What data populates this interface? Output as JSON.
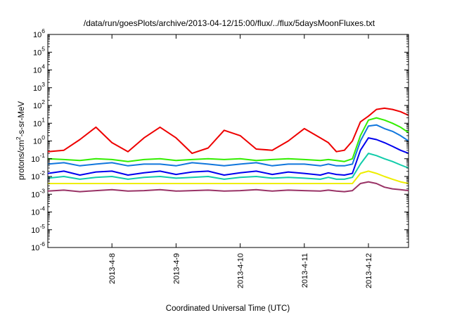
{
  "chart_data": {
    "type": "line",
    "title": "/data/run/goesPlots/archive/2013-04-12/15:00/flux/../flux/5daysMoonFluxes.txt",
    "xlabel": "Coordinated Universal Time (UTC)",
    "ylabel": "protons/cm²-s-sr-MeV",
    "ylabel_parts": [
      "protons/cm",
      "2",
      "-s-sr-MeV"
    ],
    "y_scale": "log",
    "ylim": [
      1e-06,
      1000000.0
    ],
    "y_ticks": [
      {
        "base": "10",
        "exp": "-6"
      },
      {
        "base": "10",
        "exp": "-5"
      },
      {
        "base": "10",
        "exp": "-4"
      },
      {
        "base": "10",
        "exp": "-3"
      },
      {
        "base": "10",
        "exp": "-2"
      },
      {
        "base": "10",
        "exp": "-1"
      },
      {
        "base": "10",
        "exp": "0"
      },
      {
        "base": "10",
        "exp": "1"
      },
      {
        "base": "10",
        "exp": "2"
      },
      {
        "base": "10",
        "exp": "3"
      },
      {
        "base": "10",
        "exp": "4"
      },
      {
        "base": "10",
        "exp": "5"
      },
      {
        "base": "10",
        "exp": "6"
      }
    ],
    "xlim": [
      "2013-04-07T00:00",
      "2013-04-12T15:00"
    ],
    "x_ticks": [
      "2013-4-8",
      "2013-4-9",
      "2013-4-10",
      "2013-4-11",
      "2013-4-12"
    ],
    "grid": false,
    "legend": "none",
    "series_x": [
      "2013-04-07T00:00",
      "2013-04-07T06:00",
      "2013-04-07T12:00",
      "2013-04-07T18:00",
      "2013-04-08T00:00",
      "2013-04-08T06:00",
      "2013-04-08T12:00",
      "2013-04-08T18:00",
      "2013-04-09T00:00",
      "2013-04-09T06:00",
      "2013-04-09T12:00",
      "2013-04-09T18:00",
      "2013-04-10T00:00",
      "2013-04-10T06:00",
      "2013-04-10T12:00",
      "2013-04-10T18:00",
      "2013-04-11T00:00",
      "2013-04-11T06:00",
      "2013-04-11T09:00",
      "2013-04-11T12:00",
      "2013-04-11T15:00",
      "2013-04-11T18:00",
      "2013-04-11T21:00",
      "2013-04-12T00:00",
      "2013-04-12T03:00",
      "2013-04-12T06:00",
      "2013-04-12T09:00",
      "2013-04-12T12:00",
      "2013-04-12T15:00"
    ],
    "series": [
      {
        "color": "#ee0000",
        "values": [
          0.25,
          0.3,
          1.2,
          6.0,
          0.8,
          0.25,
          1.5,
          6.0,
          1.5,
          0.2,
          0.4,
          4.0,
          2.0,
          0.35,
          0.3,
          1.0,
          5.0,
          1.5,
          0.8,
          0.25,
          0.3,
          1.0,
          12.0,
          25.0,
          60.0,
          70.0,
          60.0,
          45.0,
          28.0
        ]
      },
      {
        "color": "#33ee00",
        "values": [
          0.1,
          0.09,
          0.08,
          0.1,
          0.09,
          0.07,
          0.09,
          0.1,
          0.08,
          0.09,
          0.1,
          0.09,
          0.1,
          0.08,
          0.09,
          0.1,
          0.09,
          0.08,
          0.09,
          0.08,
          0.07,
          0.1,
          2.0,
          15.0,
          20.0,
          15.0,
          10.0,
          6.0,
          3.0
        ]
      },
      {
        "color": "#1177dd",
        "values": [
          0.05,
          0.06,
          0.04,
          0.05,
          0.06,
          0.04,
          0.05,
          0.05,
          0.04,
          0.06,
          0.05,
          0.04,
          0.05,
          0.06,
          0.04,
          0.05,
          0.05,
          0.04,
          0.05,
          0.04,
          0.04,
          0.05,
          1.0,
          7.0,
          8.0,
          5.0,
          3.5,
          2.0,
          1.0
        ]
      },
      {
        "color": "#0000ee",
        "values": [
          0.015,
          0.02,
          0.012,
          0.018,
          0.02,
          0.012,
          0.016,
          0.02,
          0.013,
          0.018,
          0.02,
          0.012,
          0.016,
          0.02,
          0.013,
          0.018,
          0.015,
          0.012,
          0.016,
          0.013,
          0.012,
          0.015,
          0.3,
          1.5,
          1.2,
          0.8,
          0.5,
          0.3,
          0.2
        ]
      },
      {
        "color": "#11ccaa",
        "values": [
          0.008,
          0.01,
          0.007,
          0.009,
          0.01,
          0.007,
          0.009,
          0.01,
          0.008,
          0.009,
          0.01,
          0.007,
          0.009,
          0.01,
          0.008,
          0.009,
          0.008,
          0.007,
          0.009,
          0.007,
          0.007,
          0.009,
          0.05,
          0.2,
          0.15,
          0.1,
          0.07,
          0.045,
          0.03
        ]
      },
      {
        "color": "#eeee00",
        "values": [
          0.004,
          0.004,
          0.004,
          0.004,
          0.004,
          0.004,
          0.004,
          0.004,
          0.004,
          0.004,
          0.004,
          0.004,
          0.004,
          0.004,
          0.004,
          0.004,
          0.004,
          0.004,
          0.004,
          0.004,
          0.004,
          0.004,
          0.015,
          0.02,
          0.015,
          0.01,
          0.007,
          0.005,
          0.004
        ]
      },
      {
        "color": "#993366",
        "values": [
          0.0015,
          0.0017,
          0.0014,
          0.0016,
          0.0018,
          0.0015,
          0.0016,
          0.0018,
          0.0015,
          0.0016,
          0.0017,
          0.0015,
          0.0016,
          0.0018,
          0.0015,
          0.0017,
          0.0016,
          0.0015,
          0.0017,
          0.0015,
          0.0014,
          0.0016,
          0.004,
          0.005,
          0.004,
          0.0025,
          0.002,
          0.0018,
          0.0016
        ]
      }
    ]
  }
}
